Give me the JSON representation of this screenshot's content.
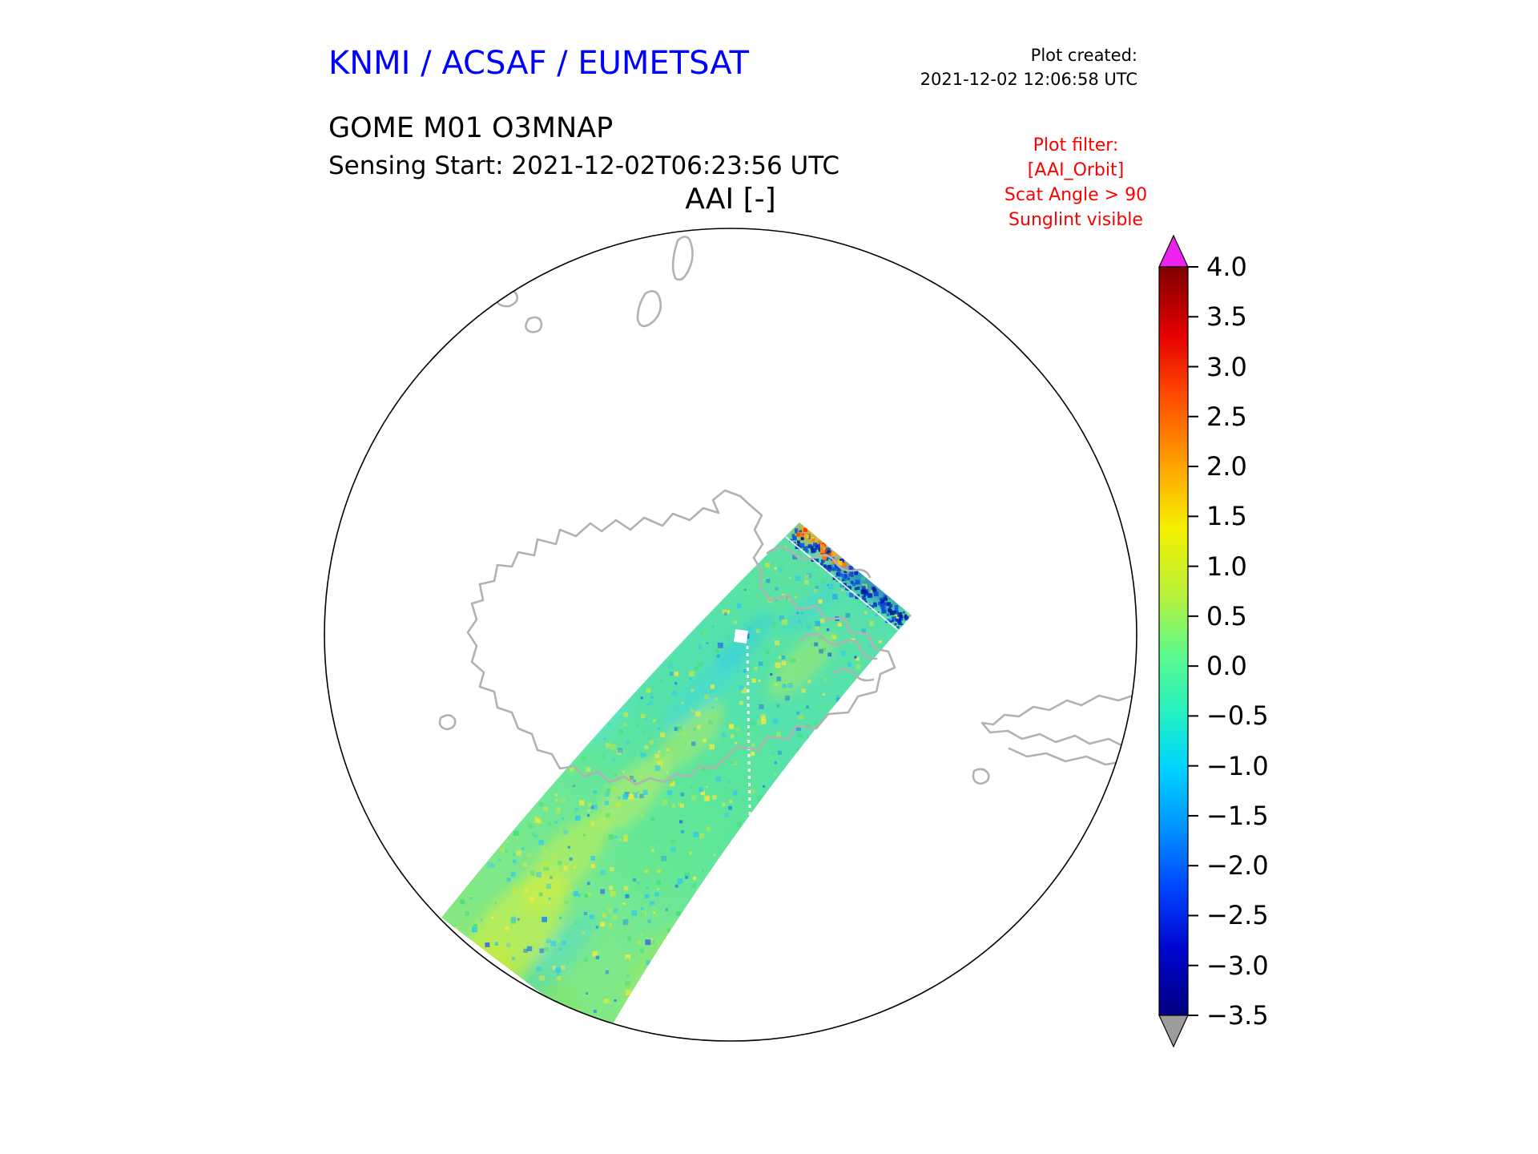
{
  "header": {
    "org_title": "KNMI / ACSAF / EUMETSAT",
    "plot_created_label": "Plot created:",
    "plot_created_value": "2021-12-02 12:06:58 UTC",
    "product_line1": "GOME M01 O3MNAP",
    "sensing_start_line": "Sensing Start: 2021-12-02T06:23:56 UTC",
    "map_title": "AAI [-]"
  },
  "plot_filter": {
    "color": "#ff0000",
    "lines": [
      "Plot filter:",
      "[AAI_Orbit]",
      "Scat Angle > 90",
      "Sunglint visible"
    ]
  },
  "colorbar": {
    "ticks": [
      "4.0",
      "3.5",
      "3.0",
      "2.5",
      "2.0",
      "1.5",
      "1.0",
      "0.5",
      "0.0",
      "−0.5",
      "−1.0",
      "−1.5",
      "−2.0",
      "−2.5",
      "−3.0",
      "−3.5"
    ],
    "over_color": "#ee22ee",
    "under_color": "#9c9c9c",
    "gradient_stops": [
      [
        0,
        "#7f0000"
      ],
      [
        0.09,
        "#e30000"
      ],
      [
        0.17,
        "#ff4900"
      ],
      [
        0.26,
        "#ff9e00"
      ],
      [
        0.35,
        "#f5f000"
      ],
      [
        0.44,
        "#b6f13c"
      ],
      [
        0.52,
        "#5bfa8e"
      ],
      [
        0.6,
        "#21f0c4"
      ],
      [
        0.67,
        "#00d2ff"
      ],
      [
        0.75,
        "#0092ff"
      ],
      [
        0.83,
        "#0045ff"
      ],
      [
        0.91,
        "#0006cf"
      ],
      [
        1,
        "#000080"
      ]
    ]
  },
  "map": {
    "coastline_color": "#b2b2b2",
    "boundary_color": "#000000"
  },
  "chart_data": {
    "type": "heatmap",
    "title": "AAI [-]",
    "projection": "polar stereographic, South Pole centered, Antarctica in view",
    "instrument": "GOME M01",
    "product": "O3MNAP",
    "sensing_start": "2021-12-02T06:23:56 UTC",
    "plot_created": "2021-12-02 12:06:58 UTC",
    "colorbar": {
      "label": "AAI [-]",
      "tick_values": [
        4.0,
        3.5,
        3.0,
        2.5,
        2.0,
        1.5,
        1.0,
        0.5,
        0.0,
        -0.5,
        -1.0,
        -1.5,
        -2.0,
        -2.5,
        -3.0,
        -3.5
      ],
      "range": [
        -3.5,
        4.0
      ],
      "colormap": "jet",
      "over_color": "magenta",
      "under_color": "gray",
      "extend": "both",
      "position": "right"
    },
    "filters": [
      "[AAI_Orbit]",
      "Scat Angle > 90",
      "Sunglint visible"
    ],
    "swath_summary": {
      "description": "Single GOME-2 orbit swath crossing the South-Pole view diagonally from lower-left to upper-right, passing over Antarctica",
      "dominant_value_range": [
        -1.0,
        1.0
      ],
      "features": [
        "mostly green/cyan AAI values around 0",
        "yellow patches near +0.5 to +1.0 in the lower half of the swath",
        "scattered cyan/blue pixels near -1 to -2",
        "dark blue pixels below -3 along the far (top-right) swath edge",
        "a few orange/red pixels above +1.5 at the swath top edge",
        "thin white along-track gap between granules in mid-swath"
      ]
    }
  }
}
